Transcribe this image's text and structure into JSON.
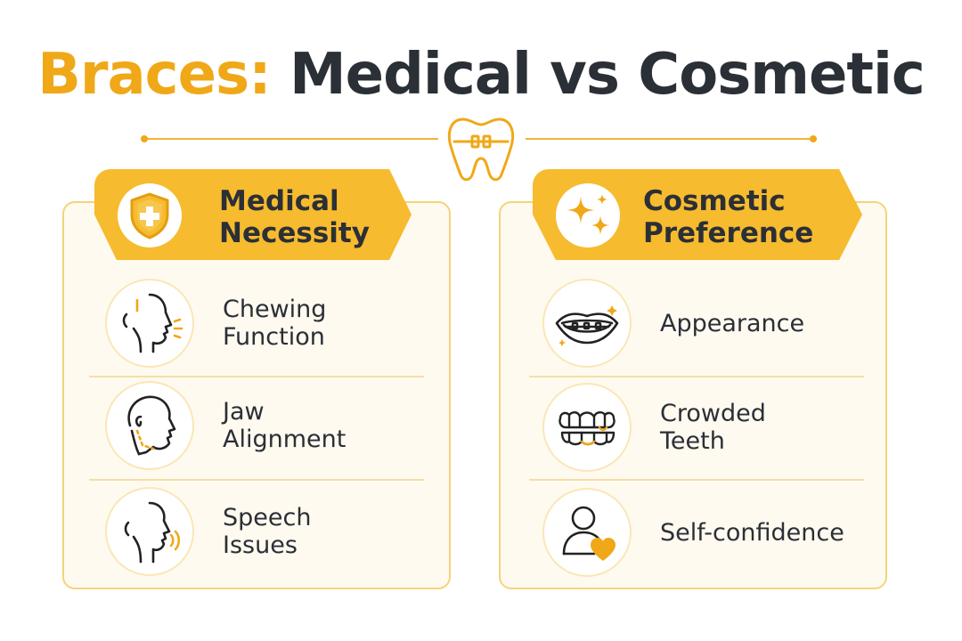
{
  "title": {
    "highlight": "Braces:",
    "rest": "Medical vs Cosmetic"
  },
  "colors": {
    "accent": "#f6bb2e",
    "text": "#2b2f36",
    "panel_bg": "#fffaf0",
    "panel_border": "#f5d37a"
  },
  "medical": {
    "heading": "Medical\nNecessity",
    "icon": "shield-cross-icon",
    "items": [
      {
        "label": "Chewing\nFunction",
        "icon": "chewing-face-icon"
      },
      {
        "label": "Jaw\nAlignment",
        "icon": "jaw-alignment-icon"
      },
      {
        "label": "Speech\nIssues",
        "icon": "speech-face-icon"
      }
    ]
  },
  "cosmetic": {
    "heading": "Cosmetic\nPreference",
    "icon": "sparkles-icon",
    "items": [
      {
        "label": "Appearance",
        "icon": "smile-braces-icon"
      },
      {
        "label": "Crowded\nTeeth",
        "icon": "crowded-teeth-icon"
      },
      {
        "label": "Self-confidence",
        "icon": "person-heart-icon"
      }
    ]
  },
  "divider_icon": "tooth-braces-icon"
}
